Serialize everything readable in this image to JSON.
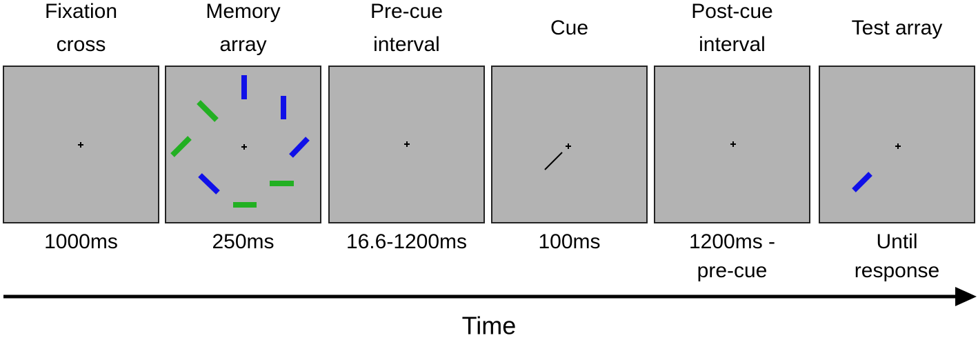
{
  "stages": [
    {
      "title": [
        "Fixation",
        "cross"
      ],
      "duration": [
        "1000ms"
      ]
    },
    {
      "title": [
        "Memory",
        "array"
      ],
      "duration": [
        "250ms"
      ]
    },
    {
      "title": [
        "Pre-cue",
        "interval"
      ],
      "duration": [
        "16.6-1200ms"
      ]
    },
    {
      "title": [
        "Cue"
      ],
      "duration": [
        "100ms"
      ]
    },
    {
      "title": [
        "Post-cue",
        "interval"
      ],
      "duration": [
        "1200ms -",
        "pre-cue"
      ]
    },
    {
      "title": [
        "Test array"
      ],
      "duration": [
        "Until",
        "response"
      ]
    }
  ],
  "axis_label": "Time"
}
